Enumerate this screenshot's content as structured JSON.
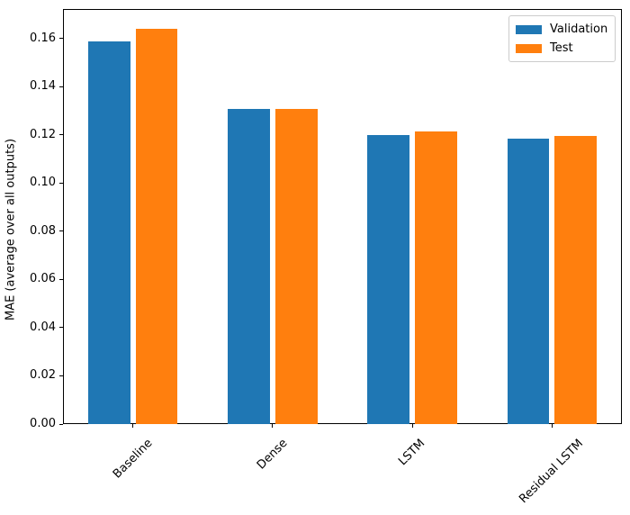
{
  "figure": {
    "background": "#ffffff"
  },
  "chart_data": {
    "type": "bar",
    "title": "",
    "xlabel": "",
    "ylabel": "MAE (average over all outputs)",
    "categories": [
      "Baseline",
      "Dense",
      "LSTM",
      "Residual LSTM"
    ],
    "series": [
      {
        "name": "Validation",
        "color": "#1f77b4",
        "values": [
          0.159,
          0.131,
          0.12,
          0.1185
        ]
      },
      {
        "name": "Test",
        "color": "#ff7f0e",
        "values": [
          0.164,
          0.131,
          0.1215,
          0.1195
        ]
      }
    ],
    "ylim": [
      0,
      0.1723
    ],
    "yticks": [
      0.0,
      0.02,
      0.04,
      0.06,
      0.08,
      0.1,
      0.12,
      0.14,
      0.16
    ],
    "ytick_labels": [
      "0.00",
      "0.02",
      "0.04",
      "0.06",
      "0.08",
      "0.10",
      "0.12",
      "0.14",
      "0.16"
    ],
    "x_tick_rotation_deg": 45,
    "grid": false,
    "legend": {
      "position": "upper right",
      "entries": [
        "Validation",
        "Test"
      ]
    },
    "bar_group": {
      "bar_width_fraction": 0.3,
      "offset_fraction": 0.17
    }
  }
}
